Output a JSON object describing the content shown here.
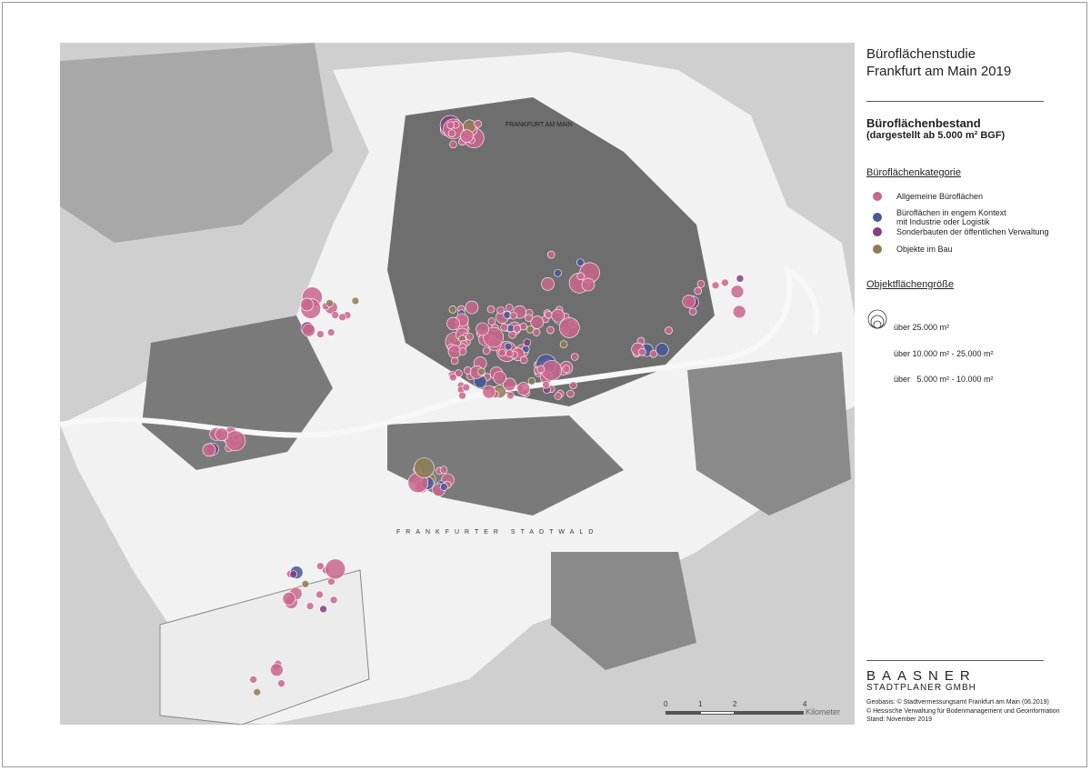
{
  "title": {
    "line1": "Büroflächenstudie",
    "line2": "Frankfurt am Main 2019"
  },
  "subtitle": {
    "main": "Büroflächenbestand",
    "note": "(dargestellt ab 5.000 m² BGF)"
  },
  "category_legend": {
    "heading": "Büroflächenkategorie",
    "items": [
      {
        "label": "Allgemeine Büroflächen",
        "color": "#c9678d"
      },
      {
        "label": "Büroflächen in engem Kontext",
        "label2": "mit Industrie oder Logistik",
        "color": "#4a5896"
      },
      {
        "label": "Sonderbauten der öffentlichen Verwaltung",
        "color": "#853f7f"
      },
      {
        "label": "Objekte im Bau",
        "color": "#8e7d55"
      }
    ]
  },
  "size_legend": {
    "heading": "Objektflächengröße",
    "items": [
      "über 25.000 m²",
      "über 10.000 m² - 25.000 m²",
      "über   5.000 m² - 10.000 m²"
    ]
  },
  "map_labels": {
    "city": "FRANKFURT AM MAIN",
    "forest": "FRANKFURTER STADTWALD"
  },
  "scale_bar": {
    "ticks": [
      "0",
      "1",
      "2",
      "4"
    ],
    "unit": "Kilometer"
  },
  "brand": {
    "name": "BAASNER",
    "sub": "STADTPLANER GMBH"
  },
  "sources": [
    "Geobasis: © Stadtvermessungsamt Frankfurt am Main (06.2019)",
    "© Hessische Verwaltung für Bodenmanagement und Geoinformation",
    "Stand: November 2019"
  ],
  "colors": {
    "map_background": "#cfcfcf",
    "built_up": "#6e6e6e",
    "open_land": "#ffffff"
  }
}
